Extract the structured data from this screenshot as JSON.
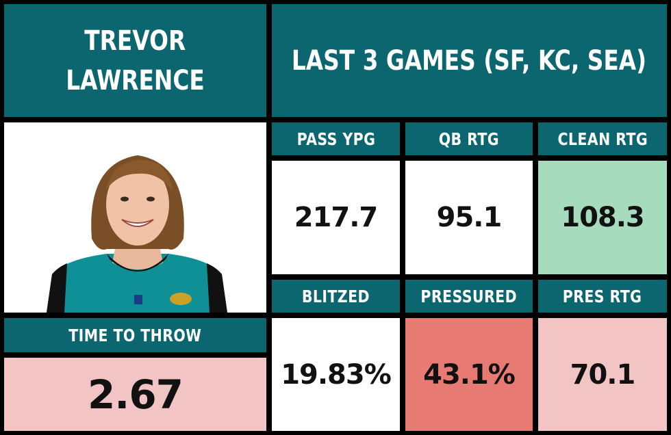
{
  "player": {
    "first_name": "TREVOR",
    "last_name": "LAWRENCE"
  },
  "header": {
    "title": "LAST 3 GAMES (SF, KC, SEA)"
  },
  "photo": {
    "icon": "player-headshot"
  },
  "time_to_throw": {
    "label": "TIME TO THROW",
    "value": "2.67"
  },
  "stats": [
    {
      "label": "PASS YPG",
      "value": "217.7"
    },
    {
      "label": "QB RTG",
      "value": "95.1"
    },
    {
      "label": "CLEAN RTG",
      "value": "108.3"
    },
    {
      "label": "BLITZED",
      "value": "19.83%"
    },
    {
      "label": "PRESSURED",
      "value": "43.1%"
    },
    {
      "label": "PRES RTG",
      "value": "70.1"
    }
  ],
  "colors": {
    "teal": "#0b6670",
    "white": "#ffffff",
    "good_green": "#a6dbbe",
    "light_red": "#f2c5c4",
    "strong_red": "#e77b74",
    "border": "#000000"
  }
}
